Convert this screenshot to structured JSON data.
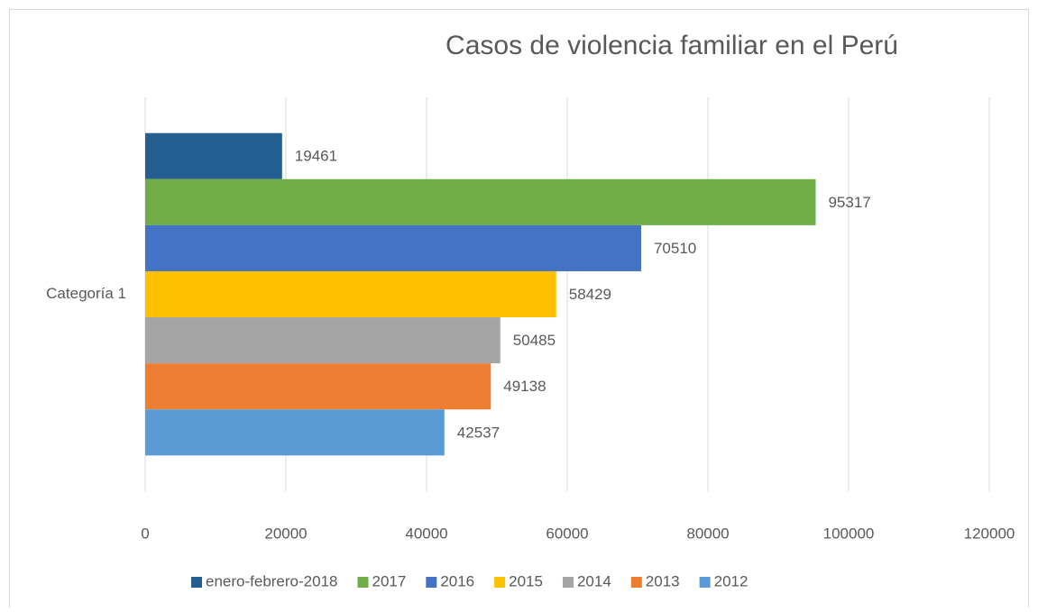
{
  "chart_data": {
    "type": "bar",
    "orientation": "horizontal",
    "title": "Casos de violencia familiar en el Perú",
    "categories": [
      "Categoría 1"
    ],
    "series": [
      {
        "name": "enero-febrero-2018",
        "color": "#255e91",
        "values": [
          19461
        ]
      },
      {
        "name": "2017",
        "color": "#70ad47",
        "values": [
          95317
        ]
      },
      {
        "name": "2016",
        "color": "#4472c4",
        "values": [
          70510
        ]
      },
      {
        "name": "2015",
        "color": "#ffc000",
        "values": [
          58429
        ]
      },
      {
        "name": "2014",
        "color": "#a5a5a5",
        "values": [
          50485
        ]
      },
      {
        "name": "2013",
        "color": "#ed7d31",
        "values": [
          49138
        ]
      },
      {
        "name": "2012",
        "color": "#5b9bd5",
        "values": [
          42537
        ]
      }
    ],
    "xlim": [
      0,
      120000
    ],
    "xticks": [
      0,
      20000,
      40000,
      60000,
      80000,
      100000,
      120000
    ],
    "grid": true,
    "legend": "bottom"
  }
}
